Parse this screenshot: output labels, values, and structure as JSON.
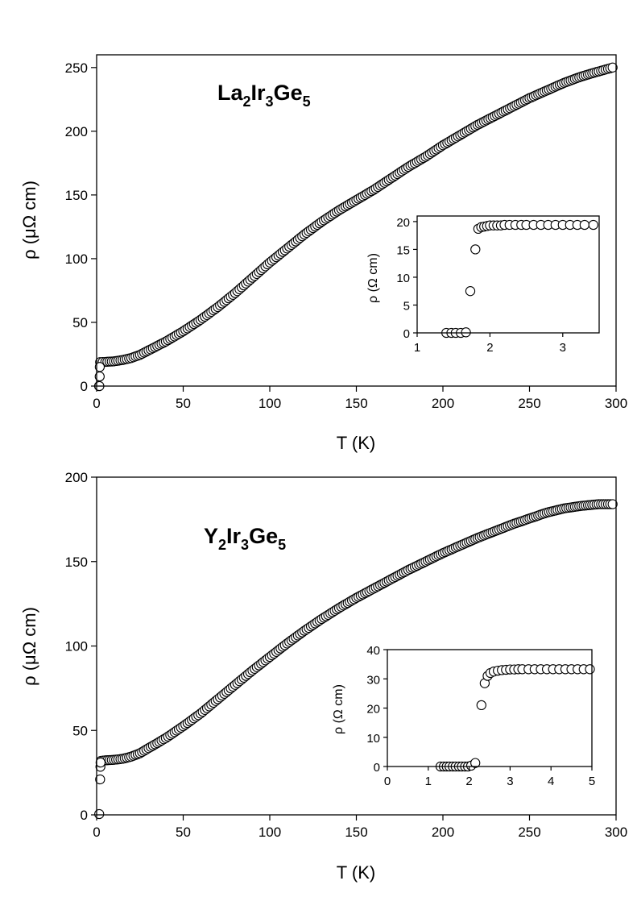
{
  "chart_data": [
    {
      "type": "scatter",
      "panel": "top",
      "compound": {
        "base1": "La",
        "sub1": "2",
        "base2": "Ir",
        "sub2": "3",
        "base3": "Ge",
        "sub3": "5"
      },
      "xlabel": "T (K)",
      "ylabel": "ρ (μΩ cm)",
      "xlim": [
        0,
        300
      ],
      "ylim": [
        0,
        260
      ],
      "xticks": [
        "0",
        "50",
        "100",
        "150",
        "200",
        "250",
        "300"
      ],
      "yticks": [
        "0",
        "50",
        "100",
        "150",
        "200",
        "250"
      ],
      "curve": [
        [
          2,
          18.8
        ],
        [
          5,
          19
        ],
        [
          10,
          19.4
        ],
        [
          15,
          20.5
        ],
        [
          20,
          22
        ],
        [
          25,
          24.5
        ],
        [
          30,
          28
        ],
        [
          40,
          35
        ],
        [
          50,
          43
        ],
        [
          60,
          52
        ],
        [
          70,
          62
        ],
        [
          80,
          73
        ],
        [
          90,
          85
        ],
        [
          100,
          97
        ],
        [
          110,
          108
        ],
        [
          120,
          119
        ],
        [
          130,
          129
        ],
        [
          140,
          138
        ],
        [
          150,
          146
        ],
        [
          160,
          154
        ],
        [
          170,
          163
        ],
        [
          180,
          172
        ],
        [
          190,
          180
        ],
        [
          200,
          189
        ],
        [
          210,
          197
        ],
        [
          220,
          205
        ],
        [
          230,
          212
        ],
        [
          240,
          219
        ],
        [
          250,
          226
        ],
        [
          260,
          232
        ],
        [
          270,
          238
        ],
        [
          280,
          243
        ],
        [
          290,
          247
        ],
        [
          298,
          250
        ]
      ],
      "transition_points": [
        [
          1.4,
          0
        ],
        [
          1.6,
          0
        ],
        [
          1.75,
          7.5
        ],
        [
          1.8,
          15
        ]
      ],
      "inset": {
        "xlabel": "",
        "ylabel": "ρ (Ω cm)",
        "xlim": [
          1,
          3.5
        ],
        "ylim": [
          0,
          21
        ],
        "xticks": [
          "1",
          "2",
          "3"
        ],
        "yticks": [
          "0",
          "5",
          "10",
          "15",
          "20"
        ],
        "points": [
          [
            1.4,
            0
          ],
          [
            1.47,
            0
          ],
          [
            1.53,
            0
          ],
          [
            1.6,
            0
          ],
          [
            1.67,
            0.1
          ],
          [
            1.73,
            7.5
          ],
          [
            1.8,
            15
          ],
          [
            1.84,
            18.7
          ],
          [
            1.88,
            19
          ],
          [
            1.92,
            19.1
          ],
          [
            1.96,
            19.2
          ],
          [
            2.0,
            19.3
          ],
          [
            2.05,
            19.3
          ],
          [
            2.1,
            19.3
          ],
          [
            2.15,
            19.3
          ],
          [
            2.2,
            19.4
          ],
          [
            2.27,
            19.4
          ],
          [
            2.35,
            19.4
          ],
          [
            2.43,
            19.4
          ],
          [
            2.5,
            19.4
          ],
          [
            2.6,
            19.4
          ],
          [
            2.7,
            19.4
          ],
          [
            2.8,
            19.4
          ],
          [
            2.9,
            19.4
          ],
          [
            3.0,
            19.4
          ],
          [
            3.1,
            19.4
          ],
          [
            3.2,
            19.4
          ],
          [
            3.3,
            19.4
          ],
          [
            3.42,
            19.4
          ]
        ]
      }
    },
    {
      "type": "scatter",
      "panel": "bottom",
      "compound": {
        "base1": "Y",
        "sub1": "2",
        "base2": "Ir",
        "sub2": "3",
        "base3": "Ge",
        "sub3": "5"
      },
      "xlabel": "T (K)",
      "ylabel": "ρ (μΩ cm)",
      "xlim": [
        0,
        300
      ],
      "ylim": [
        0,
        200
      ],
      "xticks": [
        "0",
        "50",
        "100",
        "150",
        "200",
        "250",
        "300"
      ],
      "yticks": [
        "0",
        "50",
        "100",
        "150",
        "200"
      ],
      "curve": [
        [
          2.5,
          32
        ],
        [
          5,
          32.3
        ],
        [
          10,
          32.6
        ],
        [
          15,
          33.2
        ],
        [
          20,
          34.5
        ],
        [
          25,
          36.5
        ],
        [
          30,
          39.5
        ],
        [
          40,
          45.5
        ],
        [
          50,
          52.5
        ],
        [
          60,
          60
        ],
        [
          70,
          68.5
        ],
        [
          80,
          77
        ],
        [
          90,
          85.5
        ],
        [
          100,
          93.5
        ],
        [
          110,
          101.5
        ],
        [
          120,
          109
        ],
        [
          130,
          116
        ],
        [
          140,
          122.5
        ],
        [
          150,
          128.5
        ],
        [
          160,
          134
        ],
        [
          170,
          139.5
        ],
        [
          180,
          145
        ],
        [
          190,
          150
        ],
        [
          200,
          155
        ],
        [
          210,
          159.5
        ],
        [
          220,
          164
        ],
        [
          230,
          168
        ],
        [
          240,
          172
        ],
        [
          250,
          175.5
        ],
        [
          260,
          179
        ],
        [
          270,
          181.5
        ],
        [
          280,
          183
        ],
        [
          290,
          184
        ],
        [
          298,
          184
        ]
      ],
      "transition_points": [
        [
          1.5,
          0.5
        ],
        [
          2.0,
          21
        ],
        [
          2.2,
          28.5
        ],
        [
          2.3,
          31
        ]
      ],
      "inset": {
        "xlabel": "",
        "ylabel": "ρ (Ω cm)",
        "xlim": [
          0,
          5
        ],
        "ylim": [
          0,
          40
        ],
        "xticks": [
          "0",
          "1",
          "2",
          "3",
          "4",
          "5"
        ],
        "yticks": [
          "0",
          "10",
          "20",
          "30",
          "40"
        ],
        "points": [
          [
            1.3,
            0
          ],
          [
            1.38,
            0
          ],
          [
            1.45,
            0
          ],
          [
            1.52,
            0
          ],
          [
            1.6,
            0
          ],
          [
            1.67,
            0
          ],
          [
            1.75,
            0
          ],
          [
            1.82,
            0
          ],
          [
            1.9,
            0
          ],
          [
            1.97,
            0
          ],
          [
            2.05,
            0.3
          ],
          [
            2.15,
            1.2
          ],
          [
            2.3,
            21
          ],
          [
            2.38,
            28.5
          ],
          [
            2.45,
            31
          ],
          [
            2.52,
            32
          ],
          [
            2.6,
            32.5
          ],
          [
            2.7,
            32.8
          ],
          [
            2.8,
            33
          ],
          [
            2.9,
            33.1
          ],
          [
            3.0,
            33.2
          ],
          [
            3.1,
            33.2
          ],
          [
            3.2,
            33.3
          ],
          [
            3.3,
            33.3
          ],
          [
            3.45,
            33.3
          ],
          [
            3.6,
            33.3
          ],
          [
            3.75,
            33.3
          ],
          [
            3.9,
            33.3
          ],
          [
            4.05,
            33.3
          ],
          [
            4.2,
            33.3
          ],
          [
            4.35,
            33.3
          ],
          [
            4.5,
            33.3
          ],
          [
            4.65,
            33.3
          ],
          [
            4.8,
            33.3
          ],
          [
            4.95,
            33.3
          ]
        ]
      }
    }
  ]
}
